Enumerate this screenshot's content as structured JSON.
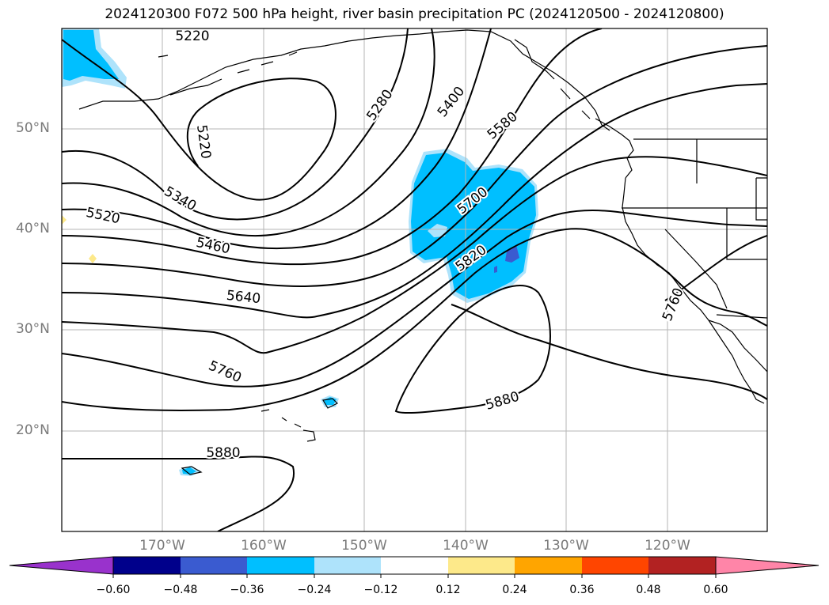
{
  "title": "2024120300 F072 500 hPa height, river basin precipitation PC (2024120500 - 2024120800)",
  "map": {
    "lat_ticks": [
      "50°N",
      "40°N",
      "30°N",
      "20°N"
    ],
    "lon_ticks": [
      "170°W",
      "160°W",
      "150°W",
      "140°W",
      "130°W",
      "120°W"
    ],
    "contour_labels": [
      "5220",
      "5220",
      "5280",
      "5400",
      "5580",
      "5340",
      "5520",
      "5460",
      "5700",
      "5640",
      "5820",
      "5760",
      "5760",
      "5880",
      "5880"
    ],
    "colors": {
      "coast": "#000000",
      "contour": "#000000",
      "grid": "#b0b0b0",
      "precip_neg_024": "#00bfff",
      "precip_neg_012": "#aee3fb",
      "precip_neg_036": "#3a5bd0"
    }
  },
  "colorbar": {
    "tick_labels": [
      "−0.60",
      "−0.48",
      "−0.36",
      "−0.24",
      "−0.12",
      "0.12",
      "0.24",
      "0.36",
      "0.48",
      "0.60"
    ],
    "colors": [
      "#9932cc",
      "#00008b",
      "#3a5bd0",
      "#00bfff",
      "#aee3fb",
      "#ffffff",
      "#fde98a",
      "#ffa500",
      "#ff4500",
      "#b22222",
      "#ff85a8"
    ]
  }
}
